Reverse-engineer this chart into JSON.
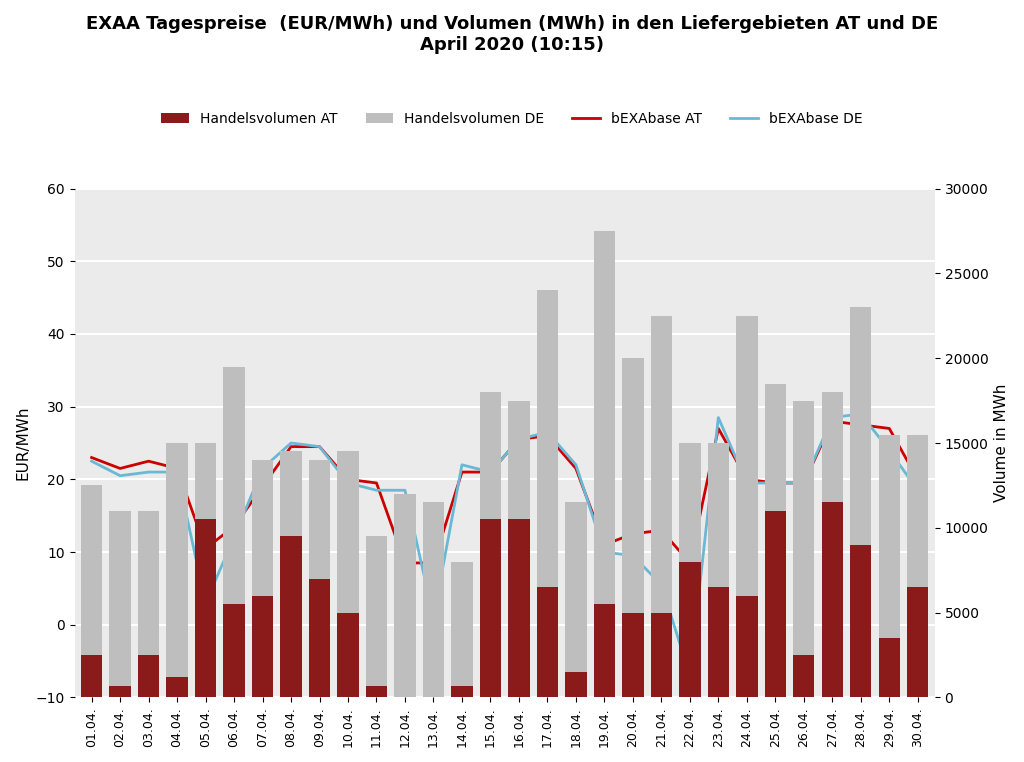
{
  "title": "EXAA Tagespreise  (EUR/MWh) und Volumen (MWh) in den Liefergebieten AT und DE\nApril 2020 (10:15)",
  "ylabel_left": "EUR/MWh",
  "ylabel_right": "Volume in MWh",
  "dates": [
    "01.04.",
    "02.04.",
    "03.04.",
    "04.04.",
    "05.04.",
    "06.04.",
    "07.04.",
    "08.04.",
    "09.04.",
    "10.04.",
    "11.04.",
    "12.04.",
    "13.04.",
    "14.04.",
    "15.04.",
    "16.04.",
    "17.04.",
    "18.04.",
    "19.04.",
    "20.04.",
    "21.04.",
    "22.04.",
    "23.04.",
    "24.04.",
    "25.04.",
    "26.04.",
    "27.04.",
    "28.04.",
    "29.04.",
    "30.04."
  ],
  "vol_AT": [
    2500,
    700,
    2500,
    1200,
    10500,
    5500,
    6000,
    9500,
    7000,
    5000,
    700,
    -1500,
    -1000,
    700,
    10500,
    10500,
    6500,
    1500,
    5500,
    5000,
    5000,
    8000,
    6500,
    6000,
    11000,
    2500,
    11500,
    9000,
    3500,
    6500
  ],
  "vol_DE": [
    12500,
    11000,
    11000,
    15000,
    15000,
    19500,
    14000,
    14500,
    14000,
    14500,
    9500,
    12000,
    11500,
    8000,
    18000,
    17500,
    24000,
    11500,
    27500,
    20000,
    22500,
    15000,
    15000,
    22500,
    18500,
    17500,
    18000,
    23000,
    15500,
    15500
  ],
  "price_AT": [
    23.0,
    21.5,
    22.5,
    21.5,
    10.5,
    13.5,
    19.0,
    24.5,
    24.5,
    20.0,
    19.5,
    8.5,
    8.5,
    21.0,
    21.0,
    25.5,
    26.0,
    21.5,
    11.0,
    12.5,
    13.0,
    8.5,
    27.0,
    20.0,
    19.5,
    19.5,
    28.0,
    27.5,
    27.0,
    20.0
  ],
  "price_DE": [
    22.5,
    20.5,
    21.0,
    21.0,
    3.0,
    12.0,
    21.5,
    25.0,
    24.5,
    19.5,
    18.5,
    18.5,
    1.0,
    22.0,
    21.0,
    25.5,
    26.5,
    22.0,
    10.0,
    9.5,
    5.5,
    -7.0,
    28.5,
    19.5,
    19.5,
    19.5,
    28.5,
    29.0,
    24.0,
    18.5
  ],
  "color_vol_AT": "#8B1A1A",
  "color_vol_DE": "#BEBEBE",
  "color_price_AT": "#CC0000",
  "color_price_DE": "#6BB8D4",
  "ylim_left": [
    -10,
    60
  ],
  "ylim_right": [
    0,
    30000
  ],
  "yticks_left": [
    -10,
    0,
    10,
    20,
    30,
    40,
    50,
    60
  ],
  "yticks_right": [
    0,
    5000,
    10000,
    15000,
    20000,
    25000,
    30000
  ],
  "legend_labels": [
    "Handelsvolumen AT",
    "Handelsvolumen DE",
    "bEXAbase AT",
    "bEXAbase DE"
  ],
  "background_color": "#FFFFFF",
  "grid_color": "#FFFFFF",
  "plot_bg_color": "#EBEBEB"
}
